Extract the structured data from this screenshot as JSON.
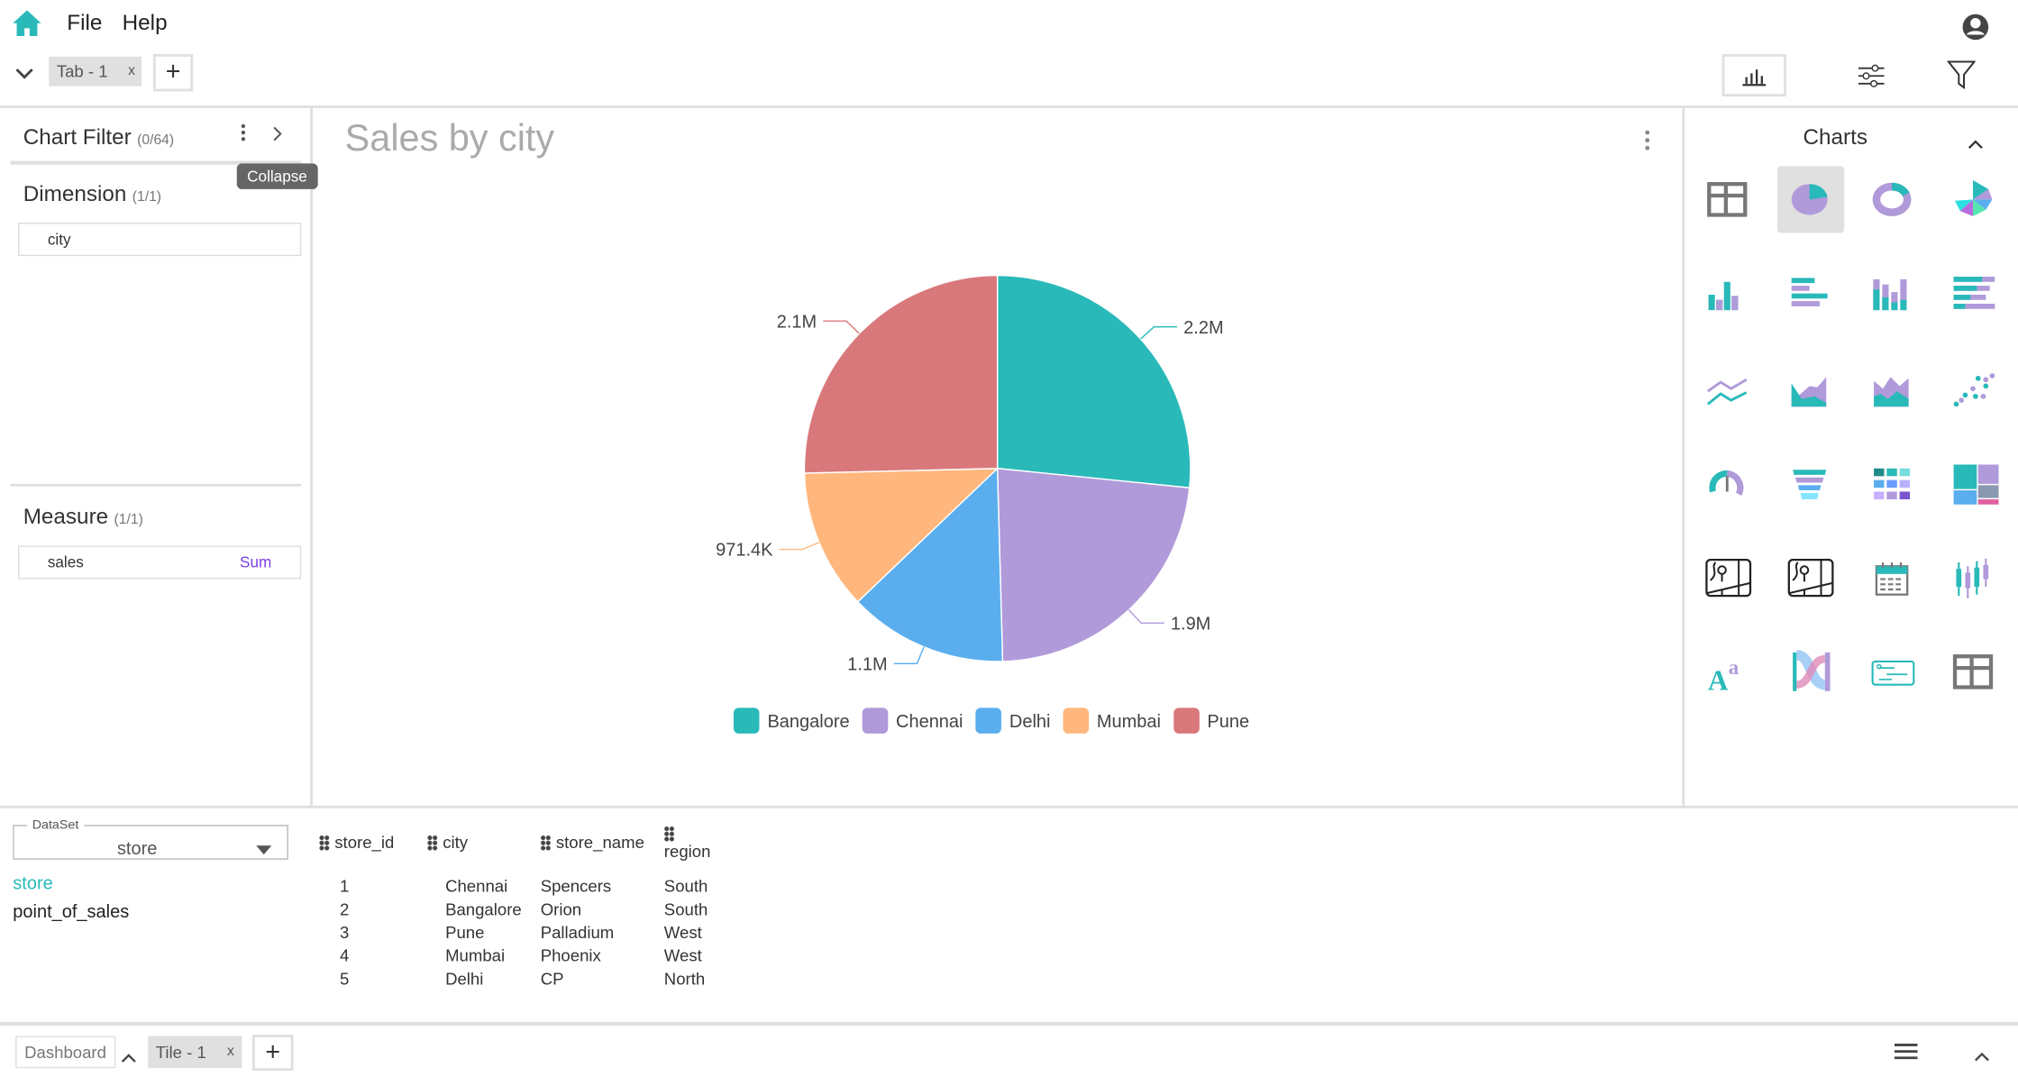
{
  "menu": {
    "file": "File",
    "help": "Help"
  },
  "tabs": {
    "items": [
      {
        "label": "Tab - 1",
        "close": "x"
      }
    ],
    "add": "+"
  },
  "filter_panel": {
    "title": "Chart Filter",
    "count": "(0/64)",
    "tooltip": "Collapse",
    "dimension": {
      "title": "Dimension",
      "count": "(1/1)",
      "fields": [
        {
          "name": "city"
        }
      ]
    },
    "measure": {
      "title": "Measure",
      "count": "(1/1)",
      "fields": [
        {
          "name": "sales",
          "agg": "Sum"
        }
      ]
    }
  },
  "chart": {
    "title": "Sales by city"
  },
  "chart_data": {
    "type": "pie",
    "title": "Sales by city",
    "categories": [
      "Bangalore",
      "Chennai",
      "Delhi",
      "Mumbai",
      "Pune"
    ],
    "values": [
      2200000,
      1900000,
      1100000,
      971400,
      2100000
    ],
    "labels": [
      "2.2M",
      "1.9M",
      "1.1M",
      "971.4K",
      "2.1M"
    ],
    "colors": [
      "#2ab9b9",
      "#b09ada",
      "#5aaeee",
      "#ffb77d",
      "#d9787b"
    ],
    "legend_position": "bottom"
  },
  "charts_panel": {
    "title": "Charts",
    "icons": [
      "table",
      "pie",
      "donut",
      "rose",
      "bar",
      "horizontal-bar",
      "stacked-bar",
      "stacked-horizontal-bar",
      "line",
      "area",
      "stacked-area",
      "scatter",
      "gauge",
      "funnel",
      "heatmap",
      "treemap",
      "map",
      "map-2",
      "calendar",
      "candlestick",
      "rich-text",
      "sankey",
      "card",
      "pivot-table"
    ],
    "selected": "pie"
  },
  "dataset": {
    "legend": "DataSet",
    "selected": "store",
    "tables": [
      "store",
      "point_of_sales"
    ],
    "active": "store"
  },
  "preview": {
    "columns": [
      "store_id",
      "city",
      "store_name",
      "region"
    ],
    "rows": [
      [
        "1",
        "Chennai",
        "Spencers",
        "South"
      ],
      [
        "2",
        "Bangalore",
        "Orion",
        "South"
      ],
      [
        "3",
        "Pune",
        "Palladium",
        "West"
      ],
      [
        "4",
        "Mumbai",
        "Phoenix",
        "West"
      ],
      [
        "5",
        "Delhi",
        "CP",
        "North"
      ]
    ]
  },
  "footer": {
    "dashboard": "Dashboard",
    "tiles": [
      {
        "label": "Tile - 1",
        "close": "x"
      }
    ],
    "add": "+"
  },
  "colors": {
    "accent": "#2ab9b9"
  }
}
